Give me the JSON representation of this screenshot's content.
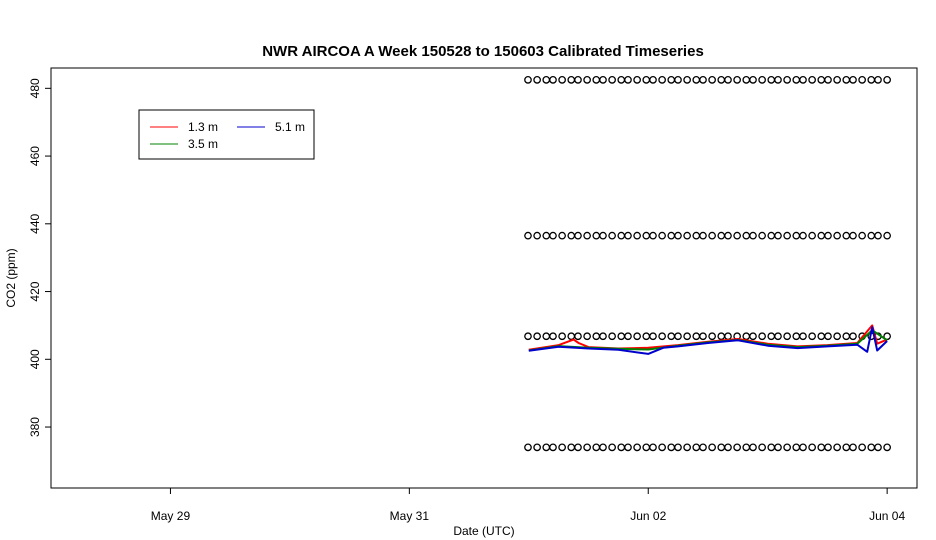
{
  "chart_data": {
    "type": "line",
    "title": "NWR AIRCOA A  Week 150528 to 150603  Calibrated Timeseries",
    "xlabel": "Date (UTC)",
    "ylabel": "CO2 (ppm)",
    "xlim": [
      "2015-05-28 00:00",
      "2015-06-04 06:00"
    ],
    "ylim": [
      362,
      486
    ],
    "x_ticks": [
      {
        "date": "2015-05-29",
        "label": "May 29"
      },
      {
        "date": "2015-05-31",
        "label": "May 31"
      },
      {
        "date": "2015-06-02",
        "label": "Jun 02"
      },
      {
        "date": "2015-06-04",
        "label": "Jun 04"
      }
    ],
    "y_ticks": [
      380,
      400,
      420,
      440,
      460,
      480
    ],
    "legend": {
      "position": "top-left",
      "entries": [
        "1.3 m",
        "3.5 m",
        "5.1 m"
      ]
    },
    "series": [
      {
        "name": "1.3 m",
        "color": "#ff0000",
        "x": [
          "2015-06-01 00:00",
          "2015-06-01 06:00",
          "2015-06-01 09:00",
          "2015-06-01 10:00",
          "2015-06-01 12:00",
          "2015-06-01 18:00",
          "2015-06-02 00:00",
          "2015-06-02 06:00",
          "2015-06-02 12:00",
          "2015-06-02 18:00",
          "2015-06-03 00:00",
          "2015-06-03 06:00",
          "2015-06-03 12:00",
          "2015-06-03 18:00",
          "2015-06-03 21:00",
          "2015-06-03 22:00",
          "2015-06-04 00:00"
        ],
        "y": [
          402.8,
          404.2,
          405.8,
          404.8,
          403.6,
          403.2,
          403.4,
          404.2,
          405.2,
          406.0,
          404.6,
          403.8,
          404.2,
          404.8,
          410.0,
          404.6,
          405.8
        ]
      },
      {
        "name": "3.5 m",
        "color": "#008000",
        "x": [
          "2015-06-01 00:00",
          "2015-06-01 06:00",
          "2015-06-01 12:00",
          "2015-06-01 18:00",
          "2015-06-02 00:00",
          "2015-06-02 06:00",
          "2015-06-02 12:00",
          "2015-06-02 18:00",
          "2015-06-03 00:00",
          "2015-06-03 06:00",
          "2015-06-03 12:00",
          "2015-06-03 18:00",
          "2015-06-03 21:00",
          "2015-06-04 00:00"
        ],
        "y": [
          402.6,
          403.9,
          403.4,
          403.1,
          402.9,
          404.0,
          405.0,
          405.7,
          404.3,
          403.6,
          404.0,
          404.6,
          408.6,
          405.6
        ]
      },
      {
        "name": "5.1 m",
        "color": "#0000cc",
        "x": [
          "2015-06-01 00:00",
          "2015-06-01 06:00",
          "2015-06-01 12:00",
          "2015-06-01 18:00",
          "2015-06-02 00:00",
          "2015-06-02 03:00",
          "2015-06-02 06:00",
          "2015-06-02 12:00",
          "2015-06-02 18:00",
          "2015-06-03 00:00",
          "2015-06-03 06:00",
          "2015-06-03 12:00",
          "2015-06-03 18:00",
          "2015-06-03 20:00",
          "2015-06-03 21:00",
          "2015-06-03 22:00",
          "2015-06-04 00:00"
        ],
        "y": [
          402.5,
          403.7,
          403.2,
          402.8,
          401.6,
          403.4,
          403.8,
          404.8,
          405.6,
          404.0,
          403.3,
          403.8,
          404.3,
          402.2,
          409.5,
          402.6,
          405.4
        ]
      },
      {
        "name": "",
        "style": "points",
        "color": "#000000",
        "x_start": "2015-06-01 00:00",
        "x_end": "2015-06-04 00:00",
        "count": 44,
        "y_levels": [
          374.0,
          406.8,
          436.5,
          482.5
        ]
      }
    ]
  }
}
